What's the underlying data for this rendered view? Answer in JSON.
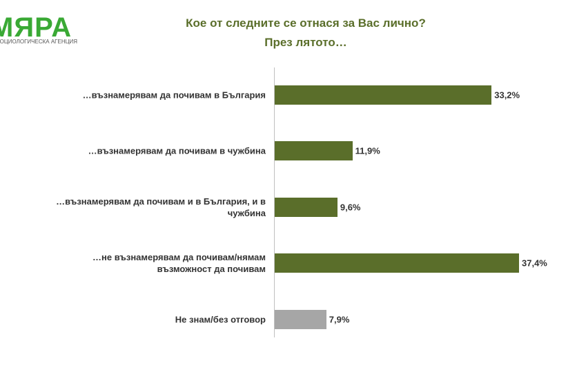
{
  "logo": {
    "name": "МЯРА",
    "tagline": "СОЦИОЛОГИЧЕСКА АГЕНЦИЯ"
  },
  "chart_data": {
    "type": "bar",
    "orientation": "horizontal",
    "title": "Кое от следните се отнася за Вас лично?",
    "subtitle": "През лятото…",
    "categories": [
      "…възнамерявам да почивам в България",
      "…възнамерявам да почивам в чужбина",
      "…възнамерявам да почивам и в България, и в чужбина",
      "…не възнамерявам да почивам/нямам възможност да почивам",
      "Не знам/без отговор"
    ],
    "values": [
      33.2,
      11.9,
      9.6,
      37.4,
      7.9
    ],
    "value_labels": [
      "33,2%",
      "11,9%",
      "9,6%",
      "37,4%",
      "7,9%"
    ],
    "colors": [
      "#5a6e2a",
      "#5a6e2a",
      "#5a6e2a",
      "#5a6e2a",
      "#a6a6a6"
    ]
  }
}
